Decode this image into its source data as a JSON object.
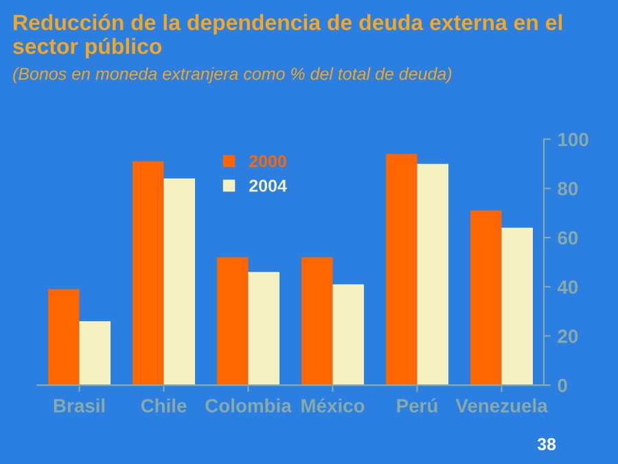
{
  "chart_data": {
    "type": "bar",
    "title": "Reducción de la dependencia de deuda externa en el sector público",
    "subtitle": "(Bonos en moneda extranjera como % del total de deuda)",
    "categories": [
      "Brasil",
      "Chile",
      "Colombia",
      "México",
      "Perú",
      "Venezuela"
    ],
    "series": [
      {
        "name": "2000",
        "color": "#ff6600",
        "values": [
          39,
          91,
          52,
          52,
          94,
          71
        ]
      },
      {
        "name": "2004",
        "color": "#f5f0c0",
        "values": [
          26,
          84,
          46,
          41,
          90,
          64
        ]
      }
    ],
    "ylim": [
      0,
      100
    ],
    "yticks": [
      0,
      20,
      40,
      60,
      80,
      100
    ],
    "grid": false,
    "legend": "top",
    "annotations": [
      "38"
    ]
  }
}
